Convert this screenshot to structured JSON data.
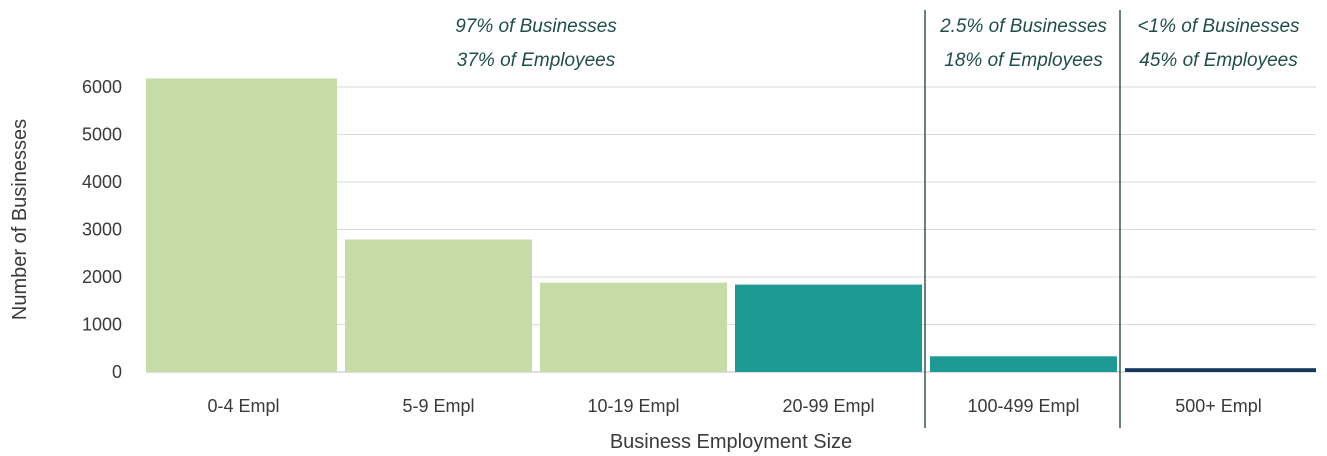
{
  "chart_data": {
    "type": "bar",
    "categories": [
      "0-4 Empl",
      "5-9 Empl",
      "10-19 Empl",
      "20-99 Empl",
      "100-499 Empl",
      "500+ Empl"
    ],
    "values": [
      6180,
      2790,
      1880,
      1840,
      330,
      80
    ],
    "bar_colors": [
      "#c5dca8",
      "#c5dca8",
      "#c5dca8",
      "#1d9a94",
      "#1d9a94",
      "#14375e"
    ],
    "xlabel": "Business Employment Size",
    "ylabel": "Number of Businesses",
    "ylim": [
      0,
      6000
    ],
    "yticks": [
      0,
      1000,
      2000,
      3000,
      4000,
      5000,
      6000
    ],
    "grid": true,
    "legend": "none",
    "annotations": [
      {
        "line1": "97% of Businesses",
        "line2": "37% of Employees",
        "categories_spanned": [
          "0-4 Empl",
          "20-99 Empl"
        ]
      },
      {
        "line1": "2.5% of Businesses",
        "line2": "18% of Employees",
        "categories_spanned": [
          "100-499 Empl",
          "100-499 Empl"
        ]
      },
      {
        "line1": "<1% of Businesses",
        "line2": "45% of Employees",
        "categories_spanned": [
          "500+ Empl",
          "500+ Empl"
        ]
      }
    ]
  }
}
